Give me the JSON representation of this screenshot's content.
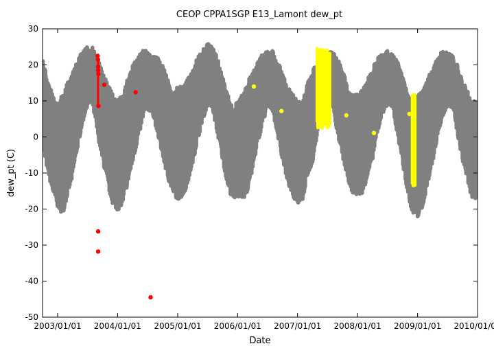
{
  "chart_data": {
    "type": "scatter",
    "title": "CEOP CPPA1SGP E13_Lamont  dew_pt",
    "xlabel": "Date",
    "ylabel": "dew_pt (C)",
    "ylim": [
      -50,
      30
    ],
    "xlim": [
      "2002-10-01",
      "2010-01-01"
    ],
    "y_ticks": [
      30,
      20,
      10,
      0,
      -10,
      -20,
      -30,
      -40,
      -50
    ],
    "x_ticks": [
      "2003/01/01",
      "2004/01/01",
      "2005/01/01",
      "2006/01/01",
      "2007/01/01",
      "2008/01/01",
      "2009/01/01",
      "2010/01/01"
    ],
    "grid": false,
    "legend": "none",
    "colors": {
      "main": "#808080",
      "flag_red": "#ff0000",
      "flag_yellow": "#ffff00"
    },
    "seasonal_envelope": [
      {
        "month": "2002-10-01",
        "low": -2,
        "high": 22
      },
      {
        "month": "2002-11-01",
        "low": -8,
        "high": 16
      },
      {
        "month": "2002-12-01",
        "low": -14,
        "high": 12
      },
      {
        "month": "2003-01-01",
        "low": -18,
        "high": 9
      },
      {
        "month": "2003-02-01",
        "low": -20,
        "high": 12
      },
      {
        "month": "2003-03-01",
        "low": -15,
        "high": 15
      },
      {
        "month": "2003-04-01",
        "low": -10,
        "high": 18
      },
      {
        "month": "2003-05-01",
        "low": -2,
        "high": 21
      },
      {
        "month": "2003-06-01",
        "low": 5,
        "high": 24
      },
      {
        "month": "2003-07-01",
        "low": 10,
        "high": 25
      },
      {
        "month": "2003-08-01",
        "low": 10,
        "high": 25
      },
      {
        "month": "2003-09-01",
        "low": 2,
        "high": 22
      },
      {
        "month": "2003-10-01",
        "low": -5,
        "high": 18
      },
      {
        "month": "2003-11-01",
        "low": -12,
        "high": 15
      },
      {
        "month": "2003-12-01",
        "low": -17,
        "high": 12
      },
      {
        "month": "2004-01-01",
        "low": -19,
        "high": 10
      },
      {
        "month": "2004-02-01",
        "low": -17,
        "high": 12
      },
      {
        "month": "2004-03-01",
        "low": -12,
        "high": 16
      },
      {
        "month": "2004-04-01",
        "low": -6,
        "high": 20
      },
      {
        "month": "2004-05-01",
        "low": 0,
        "high": 22
      },
      {
        "month": "2004-06-01",
        "low": 6,
        "high": 24
      },
      {
        "month": "2004-07-01",
        "low": 9,
        "high": 24
      },
      {
        "month": "2004-08-01",
        "low": 8,
        "high": 23
      },
      {
        "month": "2004-09-01",
        "low": 2,
        "high": 22
      },
      {
        "month": "2004-10-01",
        "low": -4,
        "high": 20
      },
      {
        "month": "2004-11-01",
        "low": -10,
        "high": 16
      },
      {
        "month": "2004-12-01",
        "low": -14,
        "high": 12
      },
      {
        "month": "2005-01-01",
        "low": -16,
        "high": 14
      },
      {
        "month": "2005-02-01",
        "low": -15,
        "high": 14
      },
      {
        "month": "2005-03-01",
        "low": -12,
        "high": 16
      },
      {
        "month": "2005-04-01",
        "low": -6,
        "high": 19
      },
      {
        "month": "2005-05-01",
        "low": 0,
        "high": 22
      },
      {
        "month": "2005-06-01",
        "low": 6,
        "high": 24
      },
      {
        "month": "2005-07-01",
        "low": 10,
        "high": 26
      },
      {
        "month": "2005-08-01",
        "low": 9,
        "high": 25
      },
      {
        "month": "2005-09-01",
        "low": 2,
        "high": 22
      },
      {
        "month": "2005-10-01",
        "low": -5,
        "high": 17
      },
      {
        "month": "2005-11-01",
        "low": -12,
        "high": 12
      },
      {
        "month": "2005-12-01",
        "low": -16,
        "high": 8
      },
      {
        "month": "2006-01-01",
        "low": -15,
        "high": 10
      },
      {
        "month": "2006-02-01",
        "low": -16,
        "high": 12
      },
      {
        "month": "2006-03-01",
        "low": -14,
        "high": 15
      },
      {
        "month": "2006-04-01",
        "low": -8,
        "high": 18
      },
      {
        "month": "2006-05-01",
        "low": -1,
        "high": 21
      },
      {
        "month": "2006-06-01",
        "low": 5,
        "high": 23
      },
      {
        "month": "2006-07-01",
        "low": 9,
        "high": 24
      },
      {
        "month": "2006-08-01",
        "low": 9,
        "high": 24
      },
      {
        "month": "2006-09-01",
        "low": 2,
        "high": 21
      },
      {
        "month": "2006-10-01",
        "low": -5,
        "high": 18
      },
      {
        "month": "2006-11-01",
        "low": -11,
        "high": 14
      },
      {
        "month": "2006-12-01",
        "low": -15,
        "high": 12
      },
      {
        "month": "2007-01-01",
        "low": -17,
        "high": 10
      },
      {
        "month": "2007-02-01",
        "low": -16,
        "high": 10
      },
      {
        "month": "2007-03-01",
        "low": -10,
        "high": 15
      },
      {
        "month": "2007-04-01",
        "low": -6,
        "high": 18
      },
      {
        "month": "2007-05-01",
        "low": 2,
        "high": 22
      },
      {
        "month": "2007-06-01",
        "low": 10,
        "high": 24
      },
      {
        "month": "2007-07-01",
        "low": 12,
        "high": 24
      },
      {
        "month": "2007-08-01",
        "low": 10,
        "high": 24
      },
      {
        "month": "2007-09-01",
        "low": 2,
        "high": 22
      },
      {
        "month": "2007-10-01",
        "low": -4,
        "high": 19
      },
      {
        "month": "2007-11-01",
        "low": -10,
        "high": 14
      },
      {
        "month": "2007-12-01",
        "low": -14,
        "high": 12
      },
      {
        "month": "2008-01-01",
        "low": -15,
        "high": 12
      },
      {
        "month": "2008-02-01",
        "low": -14,
        "high": 13
      },
      {
        "month": "2008-03-01",
        "low": -10,
        "high": 16
      },
      {
        "month": "2008-04-01",
        "low": -5,
        "high": 19
      },
      {
        "month": "2008-05-01",
        "low": 2,
        "high": 22
      },
      {
        "month": "2008-06-01",
        "low": 8,
        "high": 23
      },
      {
        "month": "2008-07-01",
        "low": 10,
        "high": 24
      },
      {
        "month": "2008-08-01",
        "low": 9,
        "high": 23
      },
      {
        "month": "2008-09-01",
        "low": 2,
        "high": 21
      },
      {
        "month": "2008-10-01",
        "low": -6,
        "high": 17
      },
      {
        "month": "2008-11-01",
        "low": -14,
        "high": 12
      },
      {
        "month": "2008-12-01",
        "low": -20,
        "high": 10
      },
      {
        "month": "2009-01-01",
        "low": -21,
        "high": 12
      },
      {
        "month": "2009-02-01",
        "low": -18,
        "high": 13
      },
      {
        "month": "2009-03-01",
        "low": -12,
        "high": 16
      },
      {
        "month": "2009-04-01",
        "low": -6,
        "high": 19
      },
      {
        "month": "2009-05-01",
        "low": 1,
        "high": 22
      },
      {
        "month": "2009-06-01",
        "low": 7,
        "high": 24
      },
      {
        "month": "2009-07-01",
        "low": 10,
        "high": 24
      },
      {
        "month": "2009-08-01",
        "low": 9,
        "high": 23
      },
      {
        "month": "2009-09-01",
        "low": 2,
        "high": 20
      },
      {
        "month": "2009-10-01",
        "low": -5,
        "high": 16
      },
      {
        "month": "2009-11-01",
        "low": -11,
        "high": 13
      },
      {
        "month": "2009-12-01",
        "low": -16,
        "high": 10
      }
    ],
    "flagged_red": [
      {
        "x": "2003-09-05",
        "y": -26.2
      },
      {
        "x": "2003-09-05",
        "y": -31.8
      },
      {
        "x": "2003-09-06",
        "y": 8.6
      },
      {
        "x": "2003-09-01",
        "y": 22.5
      },
      {
        "x": "2003-09-03",
        "y": 21.5
      },
      {
        "x": "2003-09-04",
        "y": 19.5
      },
      {
        "x": "2003-09-05",
        "y": 18.5
      },
      {
        "x": "2003-09-06",
        "y": 17.5
      },
      {
        "x": "2003-10-12",
        "y": 14.5
      },
      {
        "x": "2004-04-20",
        "y": 12.4
      },
      {
        "x": "2004-07-20",
        "y": -44.5
      }
    ],
    "flagged_red_span": [
      {
        "x": "2003-09-04",
        "y_min": 9,
        "y_max": 22.8
      }
    ],
    "flagged_yellow": [
      {
        "x": "2006-04-10",
        "y": 14.0
      },
      {
        "x": "2006-09-25",
        "y": 7.2
      },
      {
        "x": "2007-10-25",
        "y": 6.0
      },
      {
        "x": "2008-04-10",
        "y": 1.1
      },
      {
        "x": "2008-11-12",
        "y": 6.4
      }
    ],
    "flagged_yellow_span": [
      {
        "x_start": "2007-05-01",
        "x_end": "2007-07-15",
        "y_min": 2.5,
        "y_max": 24.5
      },
      {
        "x_start": "2008-12-01",
        "x_end": "2008-12-15",
        "y_min": -13.5,
        "y_max": 11.8
      }
    ]
  }
}
